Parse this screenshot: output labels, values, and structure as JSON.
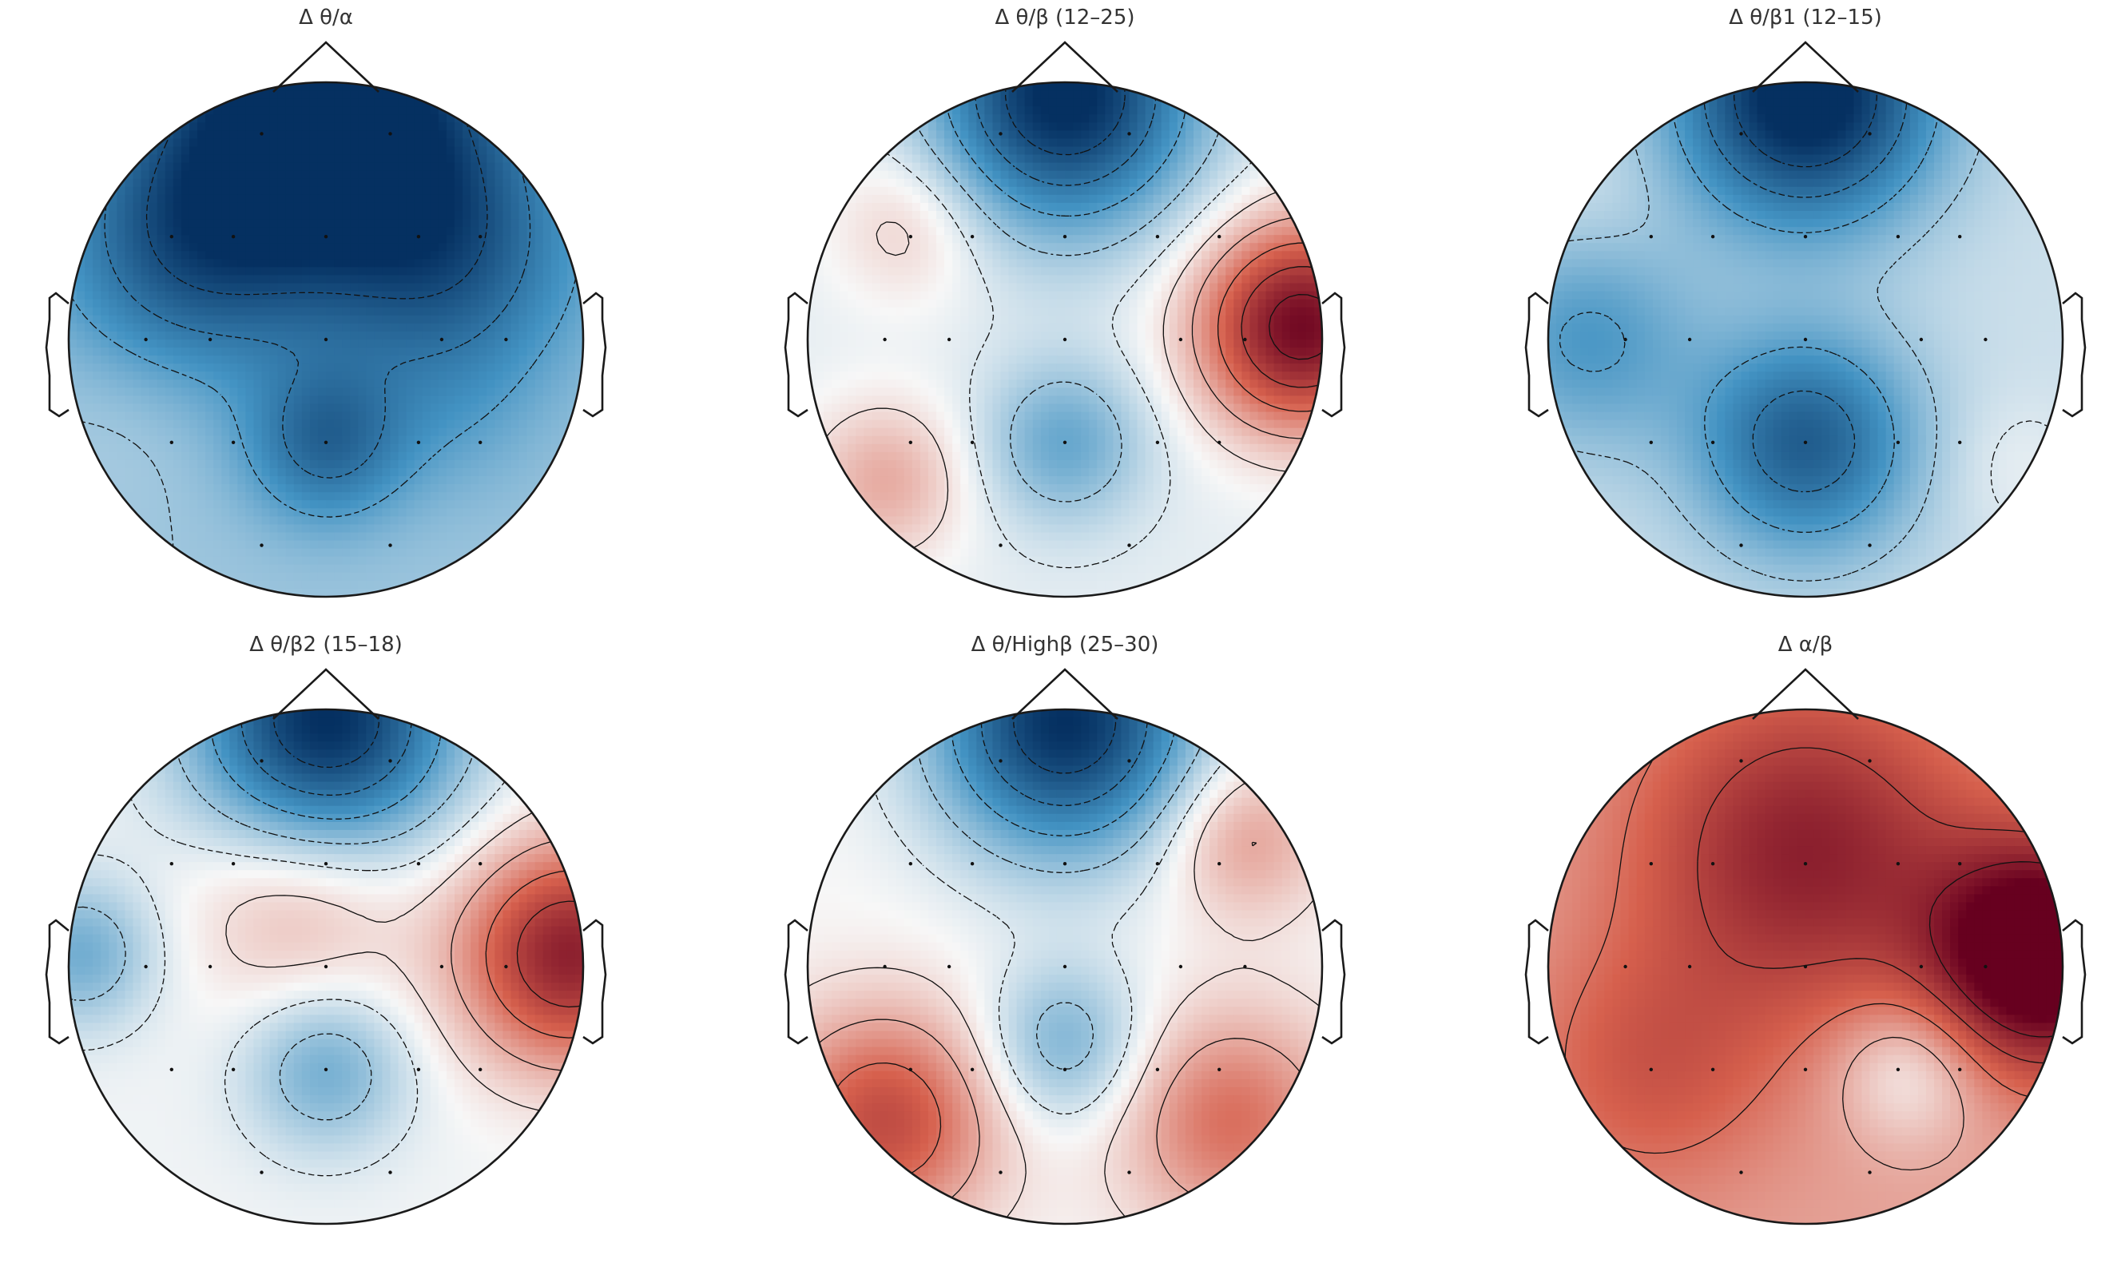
{
  "chart_data": {
    "type": "heatmap",
    "subtype": "eeg-topomap",
    "colormap": "RdBu_r",
    "colormap_colors": {
      "negative_extreme": "#053061",
      "negative_mid": "#4393c3",
      "neutral": "#f7f7f7",
      "positive_mid": "#d6604d",
      "positive_extreme": "#67001f"
    },
    "sensor_grid_rows": [
      {
        "row_y": -0.8,
        "x": [
          -0.25,
          0.25
        ]
      },
      {
        "row_y": -0.4,
        "x": [
          -0.6,
          -0.36,
          0.0,
          0.36,
          0.6
        ]
      },
      {
        "row_y": 0.0,
        "x": [
          -0.7,
          -0.45,
          0.0,
          0.45,
          0.7
        ]
      },
      {
        "row_y": 0.4,
        "x": [
          -0.6,
          -0.36,
          0.0,
          0.36,
          0.6
        ]
      },
      {
        "row_y": 0.8,
        "x": [
          -0.25,
          0.25
        ]
      }
    ],
    "panels": [
      {
        "title": "Δ θ/α",
        "sources": [
          {
            "x": 0.0,
            "y": 0.85,
            "value": -1.0,
            "spread": 0.45
          },
          {
            "x": -0.55,
            "y": 0.35,
            "value": -0.45,
            "spread": 0.35
          },
          {
            "x": 0.5,
            "y": 0.3,
            "value": -0.4,
            "spread": 0.35
          },
          {
            "x": 0.0,
            "y": -0.4,
            "value": -0.45,
            "spread": 0.22
          },
          {
            "x": -0.8,
            "y": -0.3,
            "value": 0.05,
            "spread": 0.25
          },
          {
            "x": 0.5,
            "y": -0.3,
            "value": -0.1,
            "spread": 0.25
          }
        ],
        "baseline": -0.25
      },
      {
        "title": "Δ θ/β (12–25)",
        "sources": [
          {
            "x": 0.0,
            "y": 0.95,
            "value": -1.0,
            "spread": 0.35
          },
          {
            "x": 0.92,
            "y": 0.05,
            "value": 1.0,
            "spread": 0.28
          },
          {
            "x": 0.0,
            "y": -0.4,
            "value": -0.35,
            "spread": 0.22
          },
          {
            "x": -0.7,
            "y": -0.55,
            "value": 0.3,
            "spread": 0.22
          },
          {
            "x": -0.6,
            "y": 0.45,
            "value": 0.2,
            "spread": 0.22
          }
        ],
        "baseline": -0.05
      },
      {
        "title": "Δ θ/β1 (12–15)",
        "sources": [
          {
            "x": 0.0,
            "y": 0.95,
            "value": -1.0,
            "spread": 0.35
          },
          {
            "x": 0.0,
            "y": -0.4,
            "value": -0.65,
            "spread": 0.3
          },
          {
            "x": -0.85,
            "y": 0.0,
            "value": -0.35,
            "spread": 0.3
          },
          {
            "x": 0.8,
            "y": -0.5,
            "value": 0.08,
            "spread": 0.2
          },
          {
            "x": -0.8,
            "y": 0.55,
            "value": 0.05,
            "spread": 0.2
          }
        ],
        "baseline": -0.12
      },
      {
        "title": "Δ θ/β2 (15–18)",
        "sources": [
          {
            "x": 0.0,
            "y": 0.95,
            "value": -1.0,
            "spread": 0.35
          },
          {
            "x": 0.95,
            "y": 0.05,
            "value": 0.85,
            "spread": 0.3
          },
          {
            "x": 0.0,
            "y": -0.4,
            "value": -0.35,
            "spread": 0.22
          },
          {
            "x": -0.95,
            "y": 0.05,
            "value": -0.35,
            "spread": 0.2
          },
          {
            "x": -0.1,
            "y": 0.25,
            "value": 0.25,
            "spread": 0.3
          }
        ],
        "baseline": -0.02
      },
      {
        "title": "Δ θ/Highβ (25–30)",
        "sources": [
          {
            "x": 0.0,
            "y": 0.95,
            "value": -1.0,
            "spread": 0.35
          },
          {
            "x": -0.7,
            "y": -0.6,
            "value": 0.6,
            "spread": 0.3
          },
          {
            "x": 0.65,
            "y": -0.6,
            "value": 0.45,
            "spread": 0.3
          },
          {
            "x": 0.0,
            "y": -0.3,
            "value": -0.35,
            "spread": 0.22
          },
          {
            "x": 0.7,
            "y": 0.5,
            "value": 0.3,
            "spread": 0.22
          }
        ],
        "baseline": 0.0
      },
      {
        "title": "Δ α/β",
        "sources": [
          {
            "x": 0.92,
            "y": 0.05,
            "value": 1.0,
            "spread": 0.3
          },
          {
            "x": 0.0,
            "y": 0.45,
            "value": 0.55,
            "spread": 0.45
          },
          {
            "x": 0.4,
            "y": -0.4,
            "value": -0.3,
            "spread": 0.2
          },
          {
            "x": -0.6,
            "y": -0.4,
            "value": 0.25,
            "spread": 0.35
          }
        ],
        "baseline": 0.28
      }
    ]
  }
}
